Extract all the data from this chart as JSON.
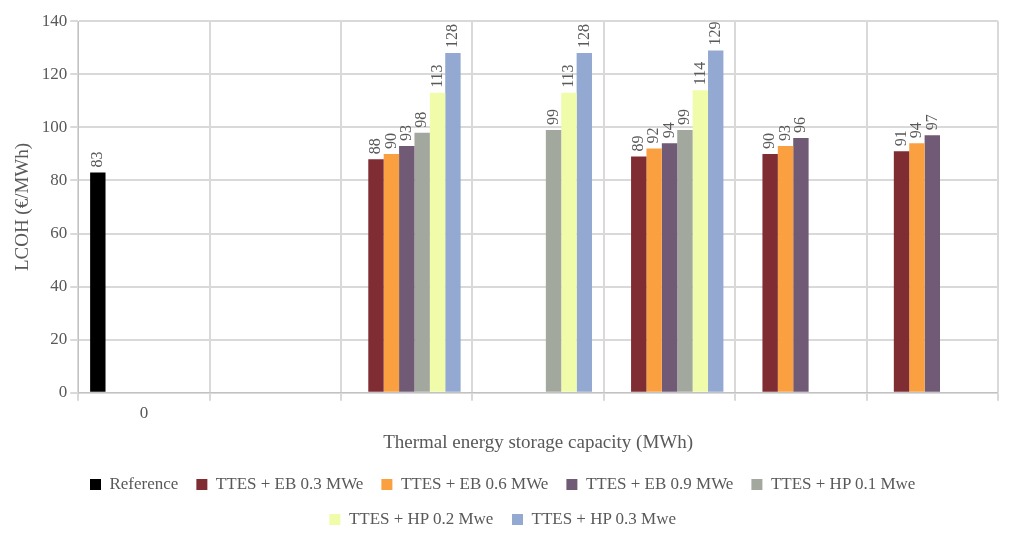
{
  "chart_data": {
    "type": "bar",
    "xlabel": "Thermal energy storage capacity (MWh)",
    "ylabel": "LCOH (€/MWh)",
    "categories": [
      "0",
      null,
      null,
      null,
      null,
      null,
      null
    ],
    "series": [
      {
        "name": "Reference",
        "color": "#000000",
        "values": [
          83,
          null,
          null,
          null,
          null,
          null,
          null
        ]
      },
      {
        "name": "TTES + EB 0.3 MWe",
        "color": "#7f2d33",
        "values": [
          null,
          null,
          88,
          null,
          89,
          90,
          91
        ]
      },
      {
        "name": "TTES + EB 0.6 MWe",
        "color": "#fba040",
        "values": [
          null,
          null,
          90,
          null,
          92,
          93,
          94
        ]
      },
      {
        "name": "TTES + EB 0.9 MWe",
        "color": "#705a75",
        "values": [
          null,
          null,
          93,
          null,
          94,
          96,
          97
        ]
      },
      {
        "name": "TTES + HP 0.1 Mwe",
        "color": "#a3a89e",
        "values": [
          null,
          null,
          98,
          99,
          99,
          null,
          null
        ]
      },
      {
        "name": "TTES + HP 0.2 Mwe",
        "color": "#f0fcaa",
        "values": [
          null,
          null,
          113,
          113,
          114,
          null,
          null
        ]
      },
      {
        "name": "TTES + HP 0.3 Mwe",
        "color": "#93a9d2",
        "values": [
          null,
          null,
          128,
          128,
          129,
          null,
          null
        ]
      }
    ],
    "ylim": [
      0,
      140
    ],
    "yticks": [
      0,
      20,
      40,
      60,
      80,
      100,
      120,
      140
    ],
    "grid": true,
    "legend": "bottom",
    "data_labels": true
  }
}
